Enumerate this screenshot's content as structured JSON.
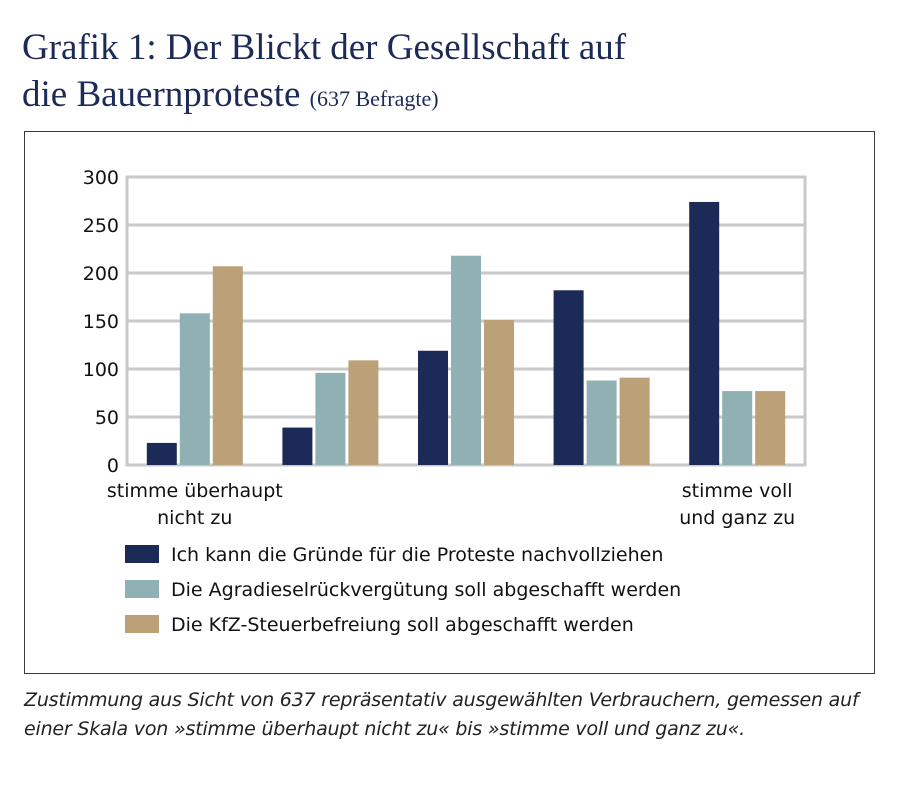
{
  "title": {
    "line1": "Grafik 1: Der Blickt der Gesellschaft auf",
    "line2": "die Bauernproteste",
    "subtitle": "(637 Befragte)"
  },
  "caption": "Zustimmung aus Sicht von 637 repräsentativ ausgewählten Verbrauchern, gemessen auf einer Skala von »stimme überhaupt nicht zu« bis »stimme voll und ganz zu«.",
  "chart_data": {
    "type": "bar",
    "categories": [
      "stimme überhaupt nicht zu",
      "",
      "",
      "",
      "stimme voll und ganz zu"
    ],
    "category_label_lines": [
      [
        "stimme überhaupt",
        "nicht zu"
      ],
      [],
      [],
      [],
      [
        "stimme voll",
        "und ganz zu"
      ]
    ],
    "series": [
      {
        "name": "Ich kann die Gründe für die Proteste nachvollziehen",
        "color": "#1c2a57",
        "values": [
          23,
          39,
          119,
          182,
          274
        ]
      },
      {
        "name": "Die Agradieselrückvergütung soll abgeschafft werden",
        "color": "#8fb1b3",
        "values": [
          158,
          96,
          218,
          88,
          77
        ]
      },
      {
        "name": "Die KfZ-Steuerbefreiung soll abgeschafft werden",
        "color": "#bca077",
        "values": [
          207,
          109,
          151,
          91,
          77
        ]
      }
    ],
    "ylim": [
      0,
      300
    ],
    "yticks": [
      0,
      50,
      100,
      150,
      200,
      250,
      300
    ],
    "grid": true,
    "legend_position": "bottom"
  }
}
